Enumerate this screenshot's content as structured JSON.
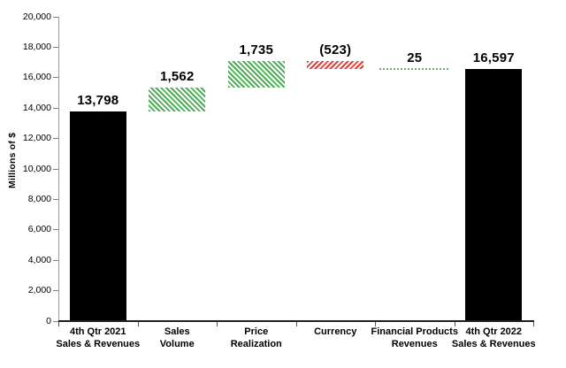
{
  "chart_data": {
    "type": "bar",
    "subtype": "waterfall",
    "title": "",
    "xlabel": "",
    "ylabel": "Millions of $",
    "ylim": [
      0,
      20000
    ],
    "ytick_step": 2000,
    "yticks": [
      "0",
      "2,000",
      "4,000",
      "6,000",
      "8,000",
      "10,000",
      "12,000",
      "14,000",
      "16,000",
      "18,000",
      "20,000"
    ],
    "grid": false,
    "legend": "none",
    "categories": [
      {
        "label_lines": [
          "4th Qtr 2021",
          "Sales & Revenues"
        ],
        "value": 13798,
        "display": "13,798",
        "kind": "total"
      },
      {
        "label_lines": [
          "Sales",
          "Volume"
        ],
        "value": 1562,
        "display": "1,562",
        "kind": "increase"
      },
      {
        "label_lines": [
          "Price",
          "Realization"
        ],
        "value": 1735,
        "display": "1,735",
        "kind": "increase"
      },
      {
        "label_lines": [
          "Currency"
        ],
        "value": -523,
        "display": "(523)",
        "kind": "decrease"
      },
      {
        "label_lines": [
          "Financial Products",
          "Revenues"
        ],
        "value": 25,
        "display": "25",
        "kind": "increase_small"
      },
      {
        "label_lines": [
          "4th Qtr 2022",
          "Sales & Revenues"
        ],
        "value": 16597,
        "display": "16,597",
        "kind": "total"
      }
    ],
    "colors": {
      "total_fill": "#000000",
      "increase_hatch": "#4fae57",
      "decrease_hatch": "#e2403a",
      "small_dotted": "#74a878",
      "y_axis_line": "#9b9b9b",
      "y_tick": "#7f7f7f",
      "baseline": "#1f1f1f",
      "x_tick": "#555555",
      "label_text": "#000000"
    }
  }
}
